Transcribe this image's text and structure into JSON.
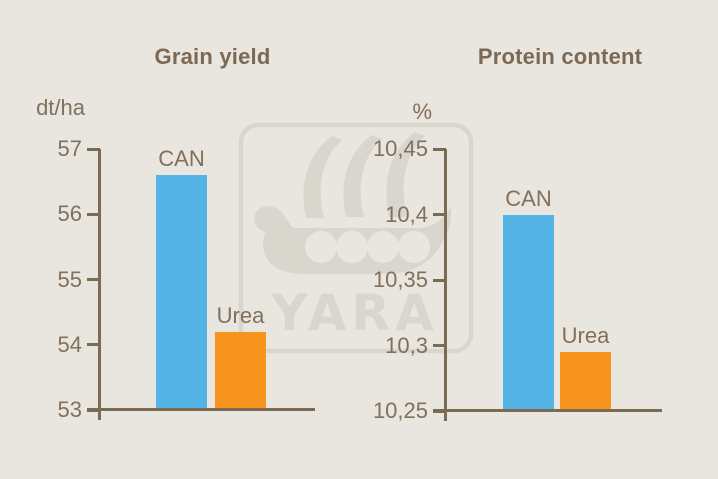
{
  "background_color": "#e9e6df",
  "text_color": "#80705c",
  "title_color": "#7b6954",
  "axis_color": "#7b6a54",
  "watermark": {
    "icon": "yara-viking-ship-logo",
    "text": "YARA",
    "color": "#d9d6cd"
  },
  "chart_data": [
    {
      "type": "bar",
      "title": "Grain yield",
      "unit": "dt/ha",
      "categories": [
        "CAN",
        "Urea"
      ],
      "values": [
        56.6,
        54.2
      ],
      "bar_colors": [
        "#55b4e6",
        "#f7941e"
      ],
      "ylim": [
        53,
        57
      ],
      "yticks": [
        {
          "label": "57",
          "value": 57
        },
        {
          "label": "56",
          "value": 56
        },
        {
          "label": "55",
          "value": 55
        },
        {
          "label": "54",
          "value": 54
        },
        {
          "label": "53",
          "value": 53
        }
      ],
      "grid": false,
      "legend": "category-labels-above-bars"
    },
    {
      "type": "bar",
      "title": "Protein content",
      "unit": "%",
      "categories": [
        "CAN",
        "Urea"
      ],
      "values": [
        10.4,
        10.295
      ],
      "bar_colors": [
        "#55b4e6",
        "#f7941e"
      ],
      "ylim": [
        10.25,
        10.45
      ],
      "yticks": [
        {
          "label": "10,45",
          "value": 10.45
        },
        {
          "label": "10,4",
          "value": 10.4
        },
        {
          "label": "10,35",
          "value": 10.35
        },
        {
          "label": "10,3",
          "value": 10.3
        },
        {
          "label": "10,25",
          "value": 10.25
        }
      ],
      "grid": false,
      "legend": "category-labels-above-bars"
    }
  ]
}
